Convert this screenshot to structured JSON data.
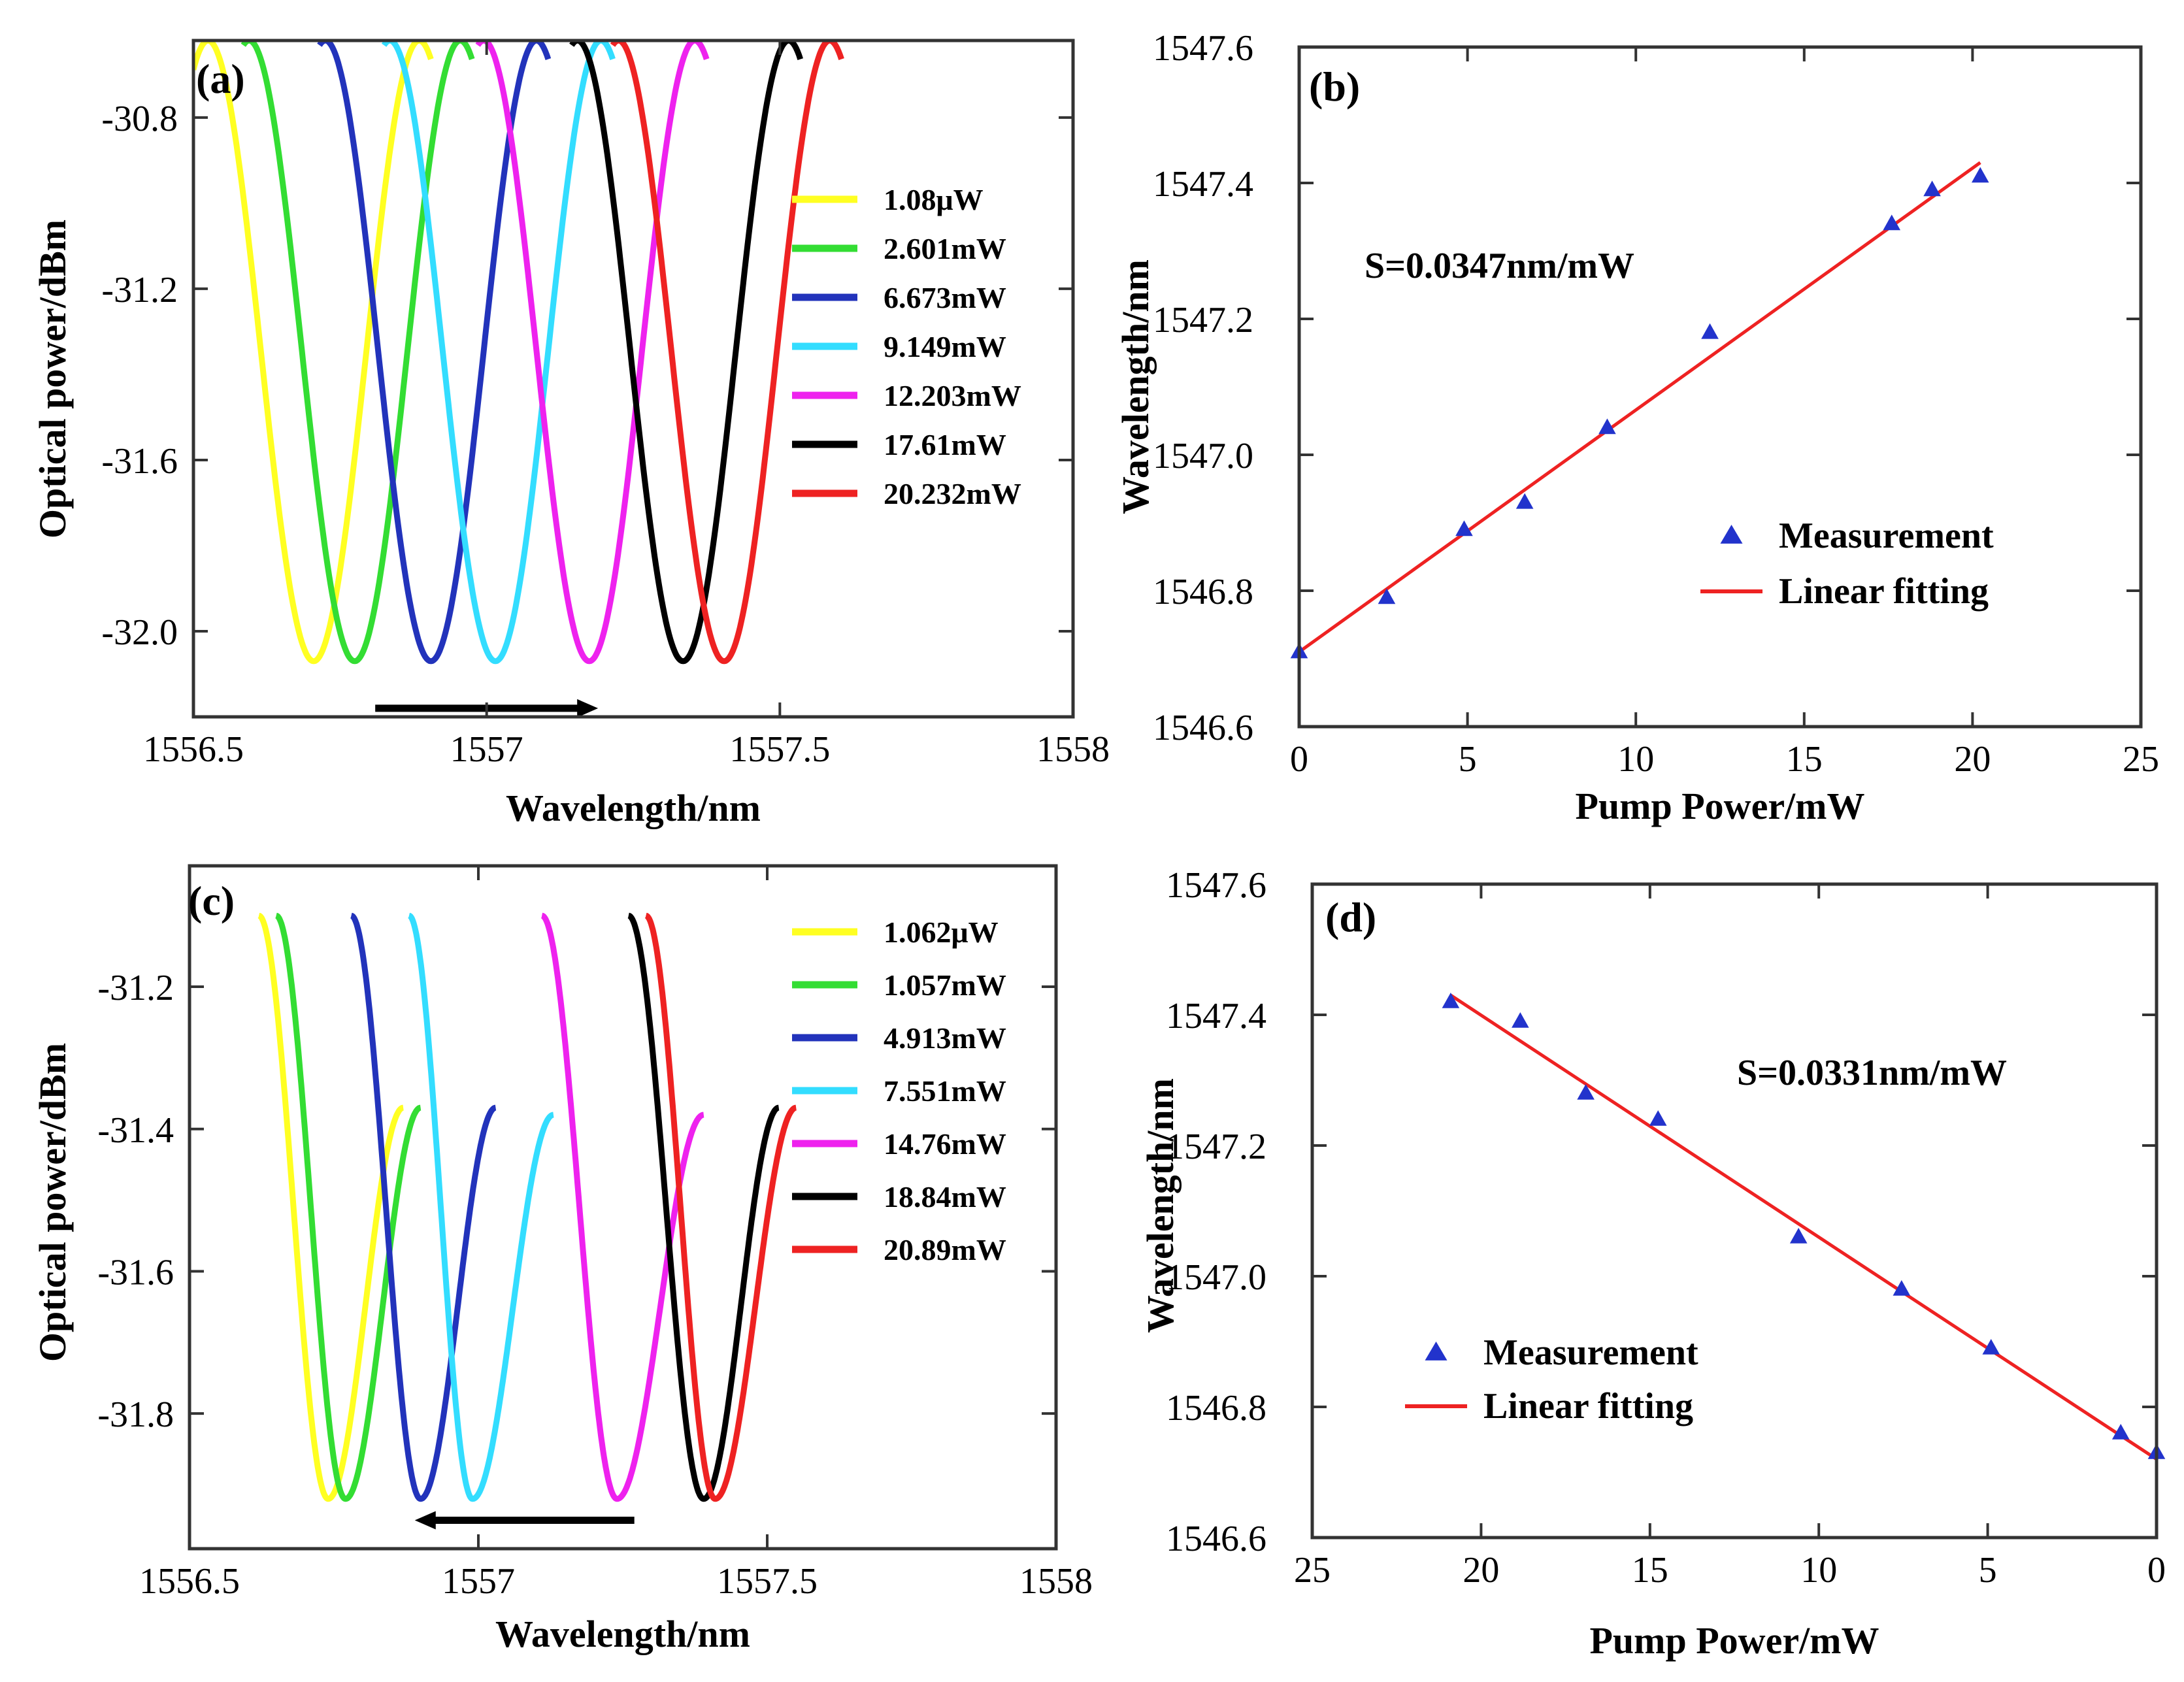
{
  "chart_data": [
    {
      "panel": "(a)",
      "type": "line",
      "xlabel": "Wavelength/nm",
      "ylabel": "Optical power/dBm",
      "xlim": [
        1556.5,
        1558
      ],
      "ylim": [
        -32.2,
        -30.62
      ],
      "xticks": [
        1556.5,
        1557,
        1557.5,
        1558
      ],
      "xtick_labels": [
        "1556.5",
        "1557",
        "1557.5",
        "1558"
      ],
      "yticks": [
        -30.8,
        -31.2,
        -31.6,
        -32.0
      ],
      "ytick_labels": [
        "-30.8",
        "-31.2",
        -31.6,
        "-32.0"
      ],
      "curve_max": -30.62,
      "curve_min": -32.07,
      "curve_period": 0.36,
      "arrow": {
        "from": 1556.81,
        "to": 1557.19,
        "y": -32.18
      },
      "series": [
        {
          "name": "1.08μW",
          "color": "#ffff22",
          "dip": 1556.705,
          "x_start": 1556.5,
          "x_end": 1556.905
        },
        {
          "name": "2.601mW",
          "color": "#33dd33",
          "dip": 1556.775,
          "x_start": 1556.585,
          "x_end": 1556.975
        },
        {
          "name": "6.673mW",
          "color": "#2233bb",
          "dip": 1556.905,
          "x_start": 1556.715,
          "x_end": 1557.105
        },
        {
          "name": "9.149mW",
          "color": "#33ddff",
          "dip": 1557.015,
          "x_start": 1556.825,
          "x_end": 1557.215
        },
        {
          "name": "12.203mW",
          "color": "#ee22ee",
          "dip": 1557.175,
          "x_start": 1556.985,
          "x_end": 1557.375
        },
        {
          "name": "17.61mW",
          "color": "#000000",
          "dip": 1557.335,
          "x_start": 1557.145,
          "x_end": 1557.535
        },
        {
          "name": "20.232mW",
          "color": "#ee2222",
          "dip": 1557.405,
          "x_start": 1557.215,
          "x_end": 1557.605
        }
      ]
    },
    {
      "panel": "(b)",
      "type": "scatter",
      "xlabel": "Pump Power/mW",
      "ylabel": "Wavelength/nm",
      "xlim": [
        0,
        25
      ],
      "ylim": [
        1546.6,
        1547.6
      ],
      "xticks": [
        0,
        5,
        10,
        15,
        20,
        25
      ],
      "xtick_labels": [
        "0",
        "5",
        "10",
        "15",
        "20",
        "25"
      ],
      "yticks": [
        1546.6,
        1546.8,
        1547.0,
        1547.2,
        1547.4,
        1547.6
      ],
      "ytick_labels": [
        "1546.6",
        "1546.8",
        "1547.0",
        "1547.2",
        "1547.4",
        "1547.6"
      ],
      "annotation": "S=0.0347nm/mW",
      "legend": [
        "Measurement",
        "Linear fitting"
      ],
      "marker_color": "#2233cc",
      "fit_color": "#ee2222",
      "points": [
        [
          0,
          1546.71
        ],
        [
          2.6,
          1546.79
        ],
        [
          4.9,
          1546.89
        ],
        [
          6.7,
          1546.93
        ],
        [
          9.15,
          1547.04
        ],
        [
          12.2,
          1547.18
        ],
        [
          17.6,
          1547.34
        ],
        [
          18.8,
          1547.39
        ],
        [
          20.23,
          1547.41
        ]
      ],
      "fit": {
        "x0": 0,
        "y0": 1546.71,
        "x1": 20.23,
        "y1": 1547.43
      }
    },
    {
      "panel": "(c)",
      "type": "line",
      "xlabel": "Wavelength/nm",
      "ylabel": "Optical power/dBm",
      "xlim": [
        1556.5,
        1558
      ],
      "ylim": [
        -31.99,
        -31.03
      ],
      "xticks": [
        1556.5,
        1557,
        1557.5,
        1558
      ],
      "xtick_labels": [
        "1556.5",
        "1557",
        "1557.5",
        "1558"
      ],
      "yticks": [
        -31.2,
        -31.4,
        -31.6,
        -31.8
      ],
      "ytick_labels": [
        "-31.2",
        "-31.4",
        "-31.6",
        "-31.8"
      ],
      "curve_max": -31.1,
      "curve_min": -31.92,
      "arrow": {
        "from": 1557.27,
        "to": 1556.89,
        "y": -31.95
      },
      "series": [
        {
          "name": "1.062μW",
          "color": "#ffff22",
          "dip": 1556.74,
          "left_x": 1556.62,
          "left_y": -31.1,
          "right_x": 1556.87,
          "right_y": -31.37
        },
        {
          "name": "1.057mW",
          "color": "#33dd33",
          "dip": 1556.77,
          "left_x": 1556.65,
          "left_y": -31.1,
          "right_x": 1556.9,
          "right_y": -31.37
        },
        {
          "name": "4.913mW",
          "color": "#2233bb",
          "dip": 1556.9,
          "left_x": 1556.78,
          "left_y": -31.1,
          "right_x": 1557.03,
          "right_y": -31.37
        },
        {
          "name": "7.551mW",
          "color": "#33ddff",
          "dip": 1556.99,
          "left_x": 1556.88,
          "left_y": -31.1,
          "right_x": 1557.13,
          "right_y": -31.38
        },
        {
          "name": "14.76mW",
          "color": "#ee22ee",
          "dip": 1557.24,
          "left_x": 1557.11,
          "left_y": -31.1,
          "right_x": 1557.39,
          "right_y": -31.38
        },
        {
          "name": "18.84mW",
          "color": "#000000",
          "dip": 1557.39,
          "left_x": 1557.26,
          "left_y": -31.1,
          "right_x": 1557.52,
          "right_y": -31.37
        },
        {
          "name": "20.89mW",
          "color": "#ee2222",
          "dip": 1557.41,
          "left_x": 1557.29,
          "left_y": -31.1,
          "right_x": 1557.55,
          "right_y": -31.37
        }
      ]
    },
    {
      "panel": "(d)",
      "type": "scatter",
      "xlabel": "Pump Power/mW",
      "ylabel": "Wavelength/nm",
      "xlim": [
        25,
        0
      ],
      "ylim": [
        1546.6,
        1547.6
      ],
      "xticks": [
        25,
        20,
        15,
        10,
        5,
        0
      ],
      "xtick_labels": [
        "25",
        "20",
        "15",
        "10",
        "5",
        "0"
      ],
      "yticks": [
        1546.6,
        1546.8,
        1547.0,
        1547.2,
        1547.4,
        1547.6
      ],
      "ytick_labels": [
        "1546.6",
        "1546.8",
        "1547.0",
        "1547.2",
        "1547.4",
        "1547.6"
      ],
      "annotation": "S=0.0331nm/mW",
      "legend": [
        "Measurement",
        "Linear fitting"
      ],
      "marker_color": "#2233cc",
      "fit_color": "#ee2222",
      "points": [
        [
          20.9,
          1547.42
        ],
        [
          18.84,
          1547.39
        ],
        [
          16.9,
          1547.28
        ],
        [
          14.76,
          1547.24
        ],
        [
          10.6,
          1547.06
        ],
        [
          7.55,
          1546.98
        ],
        [
          4.9,
          1546.89
        ],
        [
          1.06,
          1546.76
        ],
        [
          0,
          1546.73
        ]
      ],
      "fit": {
        "x0": 20.9,
        "y0": 1547.43,
        "x1": 0,
        "y1": 1546.72
      }
    }
  ]
}
